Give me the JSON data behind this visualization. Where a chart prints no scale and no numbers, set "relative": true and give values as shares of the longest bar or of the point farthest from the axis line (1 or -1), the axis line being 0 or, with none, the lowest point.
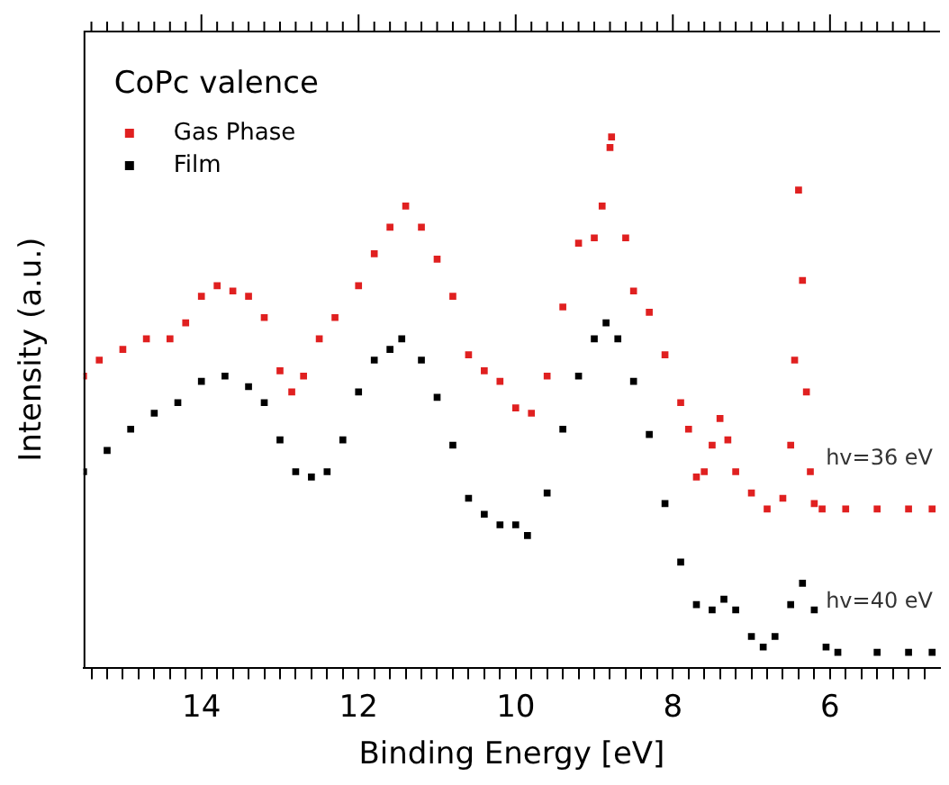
{
  "chart_data": {
    "type": "scatter",
    "xlabel": "Binding Energy [eV]",
    "ylabel": "Intensity (a.u.)",
    "legend_title": "CoPc valence",
    "legend": "top left",
    "marker": "square",
    "relative": true,
    "grid": false,
    "xlim": [
      15.5,
      4.6
    ],
    "xticks": [
      {
        "value": 15.4,
        "label": null
      },
      {
        "value": 15.2,
        "label": null
      },
      {
        "value": 15,
        "label": null
      },
      {
        "value": 14.8,
        "label": null
      },
      {
        "value": 14.6,
        "label": null
      },
      {
        "value": 14.4,
        "label": null
      },
      {
        "value": 14.2,
        "label": null
      },
      14,
      {
        "value": 13.8,
        "label": null
      },
      {
        "value": 13.6,
        "label": null
      },
      {
        "value": 13.4,
        "label": null
      },
      {
        "value": 13.2,
        "label": null
      },
      {
        "value": 13,
        "label": null
      },
      {
        "value": 12.8,
        "label": null
      },
      {
        "value": 12.6,
        "label": null
      },
      {
        "value": 12.4,
        "label": null
      },
      {
        "value": 12.2,
        "label": null
      },
      12,
      {
        "value": 11.8,
        "label": null
      },
      {
        "value": 11.6,
        "label": null
      },
      {
        "value": 11.4,
        "label": null
      },
      {
        "value": 11.2,
        "label": null
      },
      {
        "value": 11,
        "label": null
      },
      {
        "value": 10.8,
        "label": null
      },
      {
        "value": 10.6,
        "label": null
      },
      {
        "value": 10.4,
        "label": null
      },
      {
        "value": 10.2,
        "label": null
      },
      10,
      {
        "value": 9.8,
        "label": null
      },
      {
        "value": 9.6,
        "label": null
      },
      {
        "value": 9.4,
        "label": null
      },
      {
        "value": 9.2,
        "label": null
      },
      {
        "value": 9,
        "label": null
      },
      {
        "value": 8.8,
        "label": null
      },
      {
        "value": 8.6,
        "label": null
      },
      {
        "value": 8.4,
        "label": null
      },
      {
        "value": 8.2,
        "label": null
      },
      8,
      {
        "value": 7.8,
        "label": null
      },
      {
        "value": 7.6,
        "label": null
      },
      {
        "value": 7.4,
        "label": null
      },
      {
        "value": 7.2,
        "label": null
      },
      {
        "value": 7,
        "label": null
      },
      {
        "value": 6.8,
        "label": null
      },
      {
        "value": 6.6,
        "label": null
      },
      {
        "value": 6.4,
        "label": null
      },
      {
        "value": 6.2,
        "label": null
      },
      6,
      {
        "value": 5.8,
        "label": null
      },
      {
        "value": 5.6,
        "label": null
      },
      {
        "value": 5.4,
        "label": null
      },
      {
        "value": 5.2,
        "label": null
      },
      {
        "value": 5,
        "label": null
      },
      {
        "value": 4.8,
        "label": null
      }
    ],
    "series": [
      {
        "name": "Gas Phase",
        "color": "#e02020",
        "x": [
          15.5,
          15.3,
          15.0,
          14.7,
          14.4,
          14.2,
          14.0,
          13.8,
          13.6,
          13.4,
          13.2,
          13.0,
          12.85,
          12.7,
          12.5,
          12.3,
          12.0,
          11.8,
          11.6,
          11.4,
          11.2,
          11.0,
          10.8,
          10.6,
          10.4,
          10.2,
          10.0,
          9.8,
          9.6,
          9.4,
          9.2,
          9.0,
          8.9,
          8.8,
          8.78,
          8.6,
          8.5,
          8.3,
          8.1,
          7.9,
          7.8,
          7.7,
          7.6,
          7.5,
          7.4,
          7.3,
          7.2,
          7.0,
          6.8,
          6.6,
          6.5,
          6.45,
          6.4,
          6.35,
          6.3,
          6.25,
          6.2,
          6.1,
          5.8,
          5.4,
          5.0,
          4.7
        ],
        "values": [
          0.55,
          0.58,
          0.6,
          0.62,
          0.62,
          0.65,
          0.7,
          0.72,
          0.71,
          0.7,
          0.66,
          0.56,
          0.52,
          0.55,
          0.62,
          0.66,
          0.72,
          0.78,
          0.83,
          0.87,
          0.83,
          0.77,
          0.7,
          0.59,
          0.56,
          0.54,
          0.49,
          0.48,
          0.55,
          0.68,
          0.8,
          0.81,
          0.87,
          0.98,
          1,
          0.81,
          0.71,
          0.67,
          0.59,
          0.5,
          0.45,
          0.36,
          0.37,
          0.42,
          0.47,
          0.43,
          0.37,
          0.33,
          0.3,
          0.32,
          0.42,
          0.58,
          0.9,
          0.73,
          0.52,
          0.37,
          0.31,
          0.3,
          0.3,
          0.3,
          0.3,
          0.3
        ]
      },
      {
        "name": "Film",
        "color": "#000000",
        "x": [
          15.5,
          15.2,
          14.9,
          14.6,
          14.3,
          14.0,
          13.7,
          13.4,
          13.2,
          13.0,
          12.8,
          12.6,
          12.4,
          12.2,
          12.0,
          11.8,
          11.6,
          11.45,
          11.2,
          11.0,
          10.8,
          10.6,
          10.4,
          10.2,
          10.0,
          9.85,
          9.6,
          9.4,
          9.2,
          9.0,
          8.85,
          8.7,
          8.5,
          8.3,
          8.1,
          7.9,
          7.7,
          7.5,
          7.35,
          7.2,
          7.0,
          6.85,
          6.7,
          6.5,
          6.35,
          6.2,
          6.05,
          5.9,
          5.4,
          5.0,
          4.7
        ],
        "values": [
          0.37,
          0.41,
          0.45,
          0.48,
          0.5,
          0.54,
          0.55,
          0.53,
          0.5,
          0.43,
          0.37,
          0.36,
          0.37,
          0.43,
          0.52,
          0.58,
          0.6,
          0.62,
          0.58,
          0.51,
          0.42,
          0.32,
          0.29,
          0.27,
          0.27,
          0.25,
          0.33,
          0.45,
          0.55,
          0.62,
          0.65,
          0.62,
          0.54,
          0.44,
          0.31,
          0.2,
          0.12,
          0.11,
          0.13,
          0.11,
          0.06,
          0.04,
          0.06,
          0.12,
          0.16,
          0.11,
          0.04,
          0.03,
          0.03,
          0.03,
          0.03
        ]
      }
    ],
    "annotations": [
      "hv=36 eV",
      "hv=40 eV"
    ]
  }
}
